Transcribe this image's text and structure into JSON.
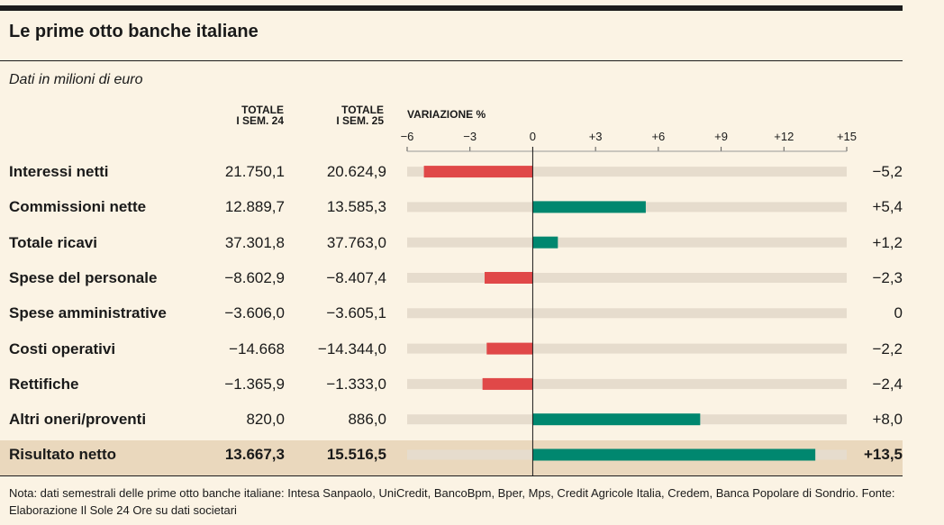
{
  "title": "Le prime otto banche italiane",
  "subtitle": "Dati in milioni di euro",
  "columns": {
    "col1_line1": "TOTALE",
    "col1_line2": "I SEM. 24",
    "col2_line1": "TOTALE",
    "col2_line2": "I SEM. 25",
    "variation": "VARIAZIONE %"
  },
  "colors": {
    "negative": "#e04848",
    "positive": "#00876f",
    "track": "#e6dccd",
    "background": "#fbf3e4",
    "highlight_row": "#ead8bd"
  },
  "chart_data": {
    "type": "bar",
    "orientation": "horizontal",
    "title": "Le prime otto banche italiane",
    "xlabel": "VARIAZIONE %",
    "xlim": [
      -6,
      15
    ],
    "xticks": [
      -6,
      -3,
      0,
      3,
      6,
      9,
      12,
      15
    ],
    "xtick_labels": [
      "−6",
      "−3",
      "0",
      "+3",
      "+6",
      "+9",
      "+12",
      "+15"
    ],
    "categories": [
      "Interessi netti",
      "Commissioni nette",
      "Totale ricavi",
      "Spese del personale",
      "Spese amministrative",
      "Costi operativi",
      "Rettifiche",
      "Altri oneri/proventi",
      "Risultato netto"
    ],
    "values": [
      -5.2,
      5.4,
      1.2,
      -2.3,
      0,
      -2.2,
      -2.4,
      8.0,
      13.5
    ]
  },
  "rows": [
    {
      "label": "Interessi netti",
      "h1_24": "21.750,1",
      "h1_25": "20.624,9",
      "change": "−5,2"
    },
    {
      "label": "Commissioni nette",
      "h1_24": "12.889,7",
      "h1_25": "13.585,3",
      "change": "+5,4"
    },
    {
      "label": "Totale ricavi",
      "h1_24": "37.301,8",
      "h1_25": "37.763,0",
      "change": "+1,2"
    },
    {
      "label": "Spese del personale",
      "h1_24": "−8.602,9",
      "h1_25": "−8.407,4",
      "change": "−2,3"
    },
    {
      "label": "Spese amministrative",
      "h1_24": "−3.606,0",
      "h1_25": "−3.605,1",
      "change": "0"
    },
    {
      "label": "Costi operativi",
      "h1_24": "−14.668",
      "h1_25": "−14.344,0",
      "change": "−2,2"
    },
    {
      "label": "Rettifiche",
      "h1_24": "−1.365,9",
      "h1_25": "−1.333,0",
      "change": "−2,4"
    },
    {
      "label": "Altri oneri/proventi",
      "h1_24": "820,0",
      "h1_25": "886,0",
      "change": "+8,0"
    },
    {
      "label": "Risultato netto",
      "h1_24": "13.667,3",
      "h1_25": "15.516,5",
      "change": "+13,5"
    }
  ],
  "note": "Nota: dati semestrali delle prime otto banche italiane: Intesa Sanpaolo, UniCredit, BancoBpm, Bper, Mps, Credit Agricole Italia, Credem, Banca Popolare di Sondrio. Fonte: Elaborazione Il Sole 24 Ore su dati societari"
}
